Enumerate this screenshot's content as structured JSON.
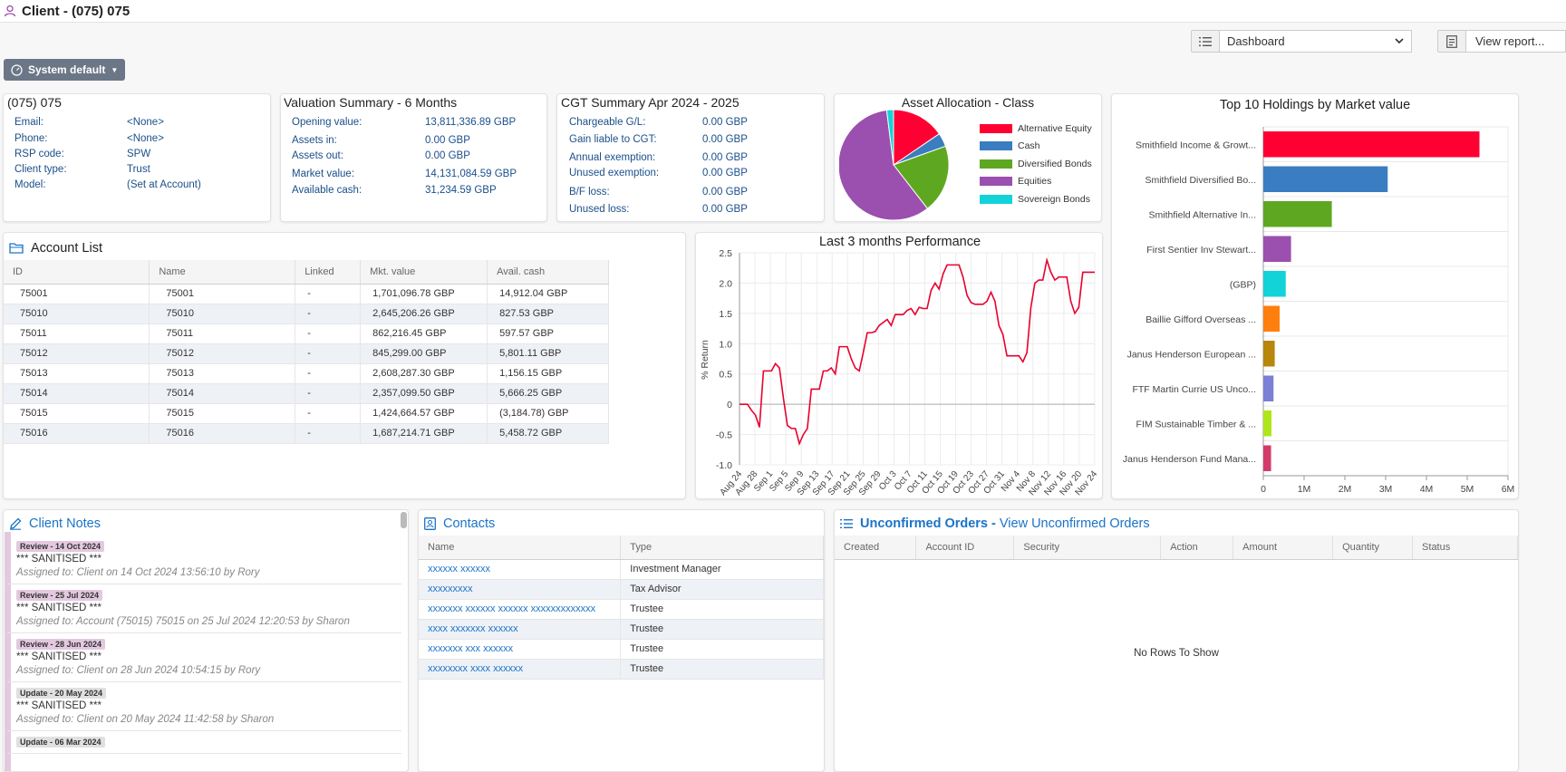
{
  "header": {
    "title": "Client - (075) 075"
  },
  "toolbar": {
    "dashboard_select": "Dashboard",
    "view_report": "View report..."
  },
  "system_default": "System default",
  "client_info": {
    "title": "(075) 075",
    "fields": [
      {
        "label": "Email:",
        "value": "<None>"
      },
      {
        "label": "Phone:",
        "value": "<None>"
      },
      {
        "label": "RSP code:",
        "value": "SPW"
      },
      {
        "label": "Client type:",
        "value": "Trust"
      },
      {
        "label": "Model:",
        "value": "(Set at Account)"
      }
    ]
  },
  "valuation": {
    "title": "Valuation Summary - 6 Months",
    "fields": [
      {
        "label": "Opening value:",
        "value": "13,811,336.89 GBP"
      },
      {
        "label": "Assets in:",
        "value": "0.00 GBP"
      },
      {
        "label": "Assets out:",
        "value": "0.00 GBP"
      },
      {
        "label": "Market value:",
        "value": "14,131,084.59 GBP"
      },
      {
        "label": "Available cash:",
        "value": "31,234.59 GBP"
      }
    ]
  },
  "cgt": {
    "title": "CGT Summary Apr 2024 - 2025",
    "fields": [
      {
        "label": "Chargeable G/L:",
        "value": "0.00 GBP"
      },
      {
        "label": "Gain liable to CGT:",
        "value": "0.00 GBP"
      },
      {
        "label": "Annual exemption:",
        "value": "0.00 GBP"
      },
      {
        "label": "Unused exemption:",
        "value": "0.00 GBP"
      },
      {
        "label": "B/F loss:",
        "value": "0.00 GBP"
      },
      {
        "label": "Unused loss:",
        "value": "0.00 GBP"
      }
    ]
  },
  "asset_allocation": {
    "title": "Asset Allocation - Class",
    "legend": [
      {
        "name": "Alternative Equity",
        "color": "#ff0033"
      },
      {
        "name": "Cash",
        "color": "#3a7dc0"
      },
      {
        "name": "Diversified Bonds",
        "color": "#5ea821"
      },
      {
        "name": "Equities",
        "color": "#9b4fae"
      },
      {
        "name": "Sovereign Bonds",
        "color": "#12d3d8"
      }
    ],
    "slices": [
      15.5,
      4,
      20,
      58.5,
      2
    ]
  },
  "top10": {
    "title": "Top 10 Holdings by Market value",
    "labels": [
      "Smithfield Income & Growt...",
      "Smithfield Diversified Bo...",
      "Smithfield Alternative In...",
      "First Sentier Inv Stewart...",
      "(GBP)",
      "Baillie Gifford Overseas ...",
      "Janus Henderson European ...",
      "FTF Martin Currie US Unco...",
      "FIM Sustainable Timber & ...",
      "Janus Henderson Fund Mana..."
    ],
    "values": [
      5.3,
      3.05,
      1.68,
      0.68,
      0.55,
      0.4,
      0.28,
      0.25,
      0.2,
      0.19
    ],
    "colors": [
      "#ff0033",
      "#3a7dc0",
      "#5ea821",
      "#9b4fae",
      "#12d3d8",
      "#ff7f0e",
      "#b8860b",
      "#7b7fd6",
      "#aee61a",
      "#d33a6b"
    ],
    "ticks": [
      "0",
      "1M",
      "2M",
      "3M",
      "4M",
      "5M",
      "6M"
    ]
  },
  "accounts": {
    "title": "Account List",
    "columns": [
      "ID",
      "Name",
      "Linked",
      "Mkt. value",
      "Avail. cash"
    ],
    "rows": [
      [
        "75001",
        "75001",
        "-",
        "1,701,096.78 GBP",
        "14,912.04 GBP"
      ],
      [
        "75010",
        "75010",
        "-",
        "2,645,206.26 GBP",
        "827.53 GBP"
      ],
      [
        "75011",
        "75011",
        "-",
        "862,216.45 GBP",
        "597.57 GBP"
      ],
      [
        "75012",
        "75012",
        "-",
        "845,299.00 GBP",
        "5,801.11 GBP"
      ],
      [
        "75013",
        "75013",
        "-",
        "2,608,287.30 GBP",
        "1,156.15 GBP"
      ],
      [
        "75014",
        "75014",
        "-",
        "2,357,099.50 GBP",
        "5,666.25 GBP"
      ],
      [
        "75015",
        "75015",
        "-",
        "1,424,664.57 GBP",
        "(3,184.78) GBP"
      ],
      [
        "75016",
        "75016",
        "-",
        "1,687,214.71 GBP",
        "5,458.72 GBP"
      ]
    ]
  },
  "chart_data": {
    "type": "line",
    "title": "Last 3 months Performance",
    "ylabel": "% Return",
    "ylim": [
      -1.0,
      2.5
    ],
    "yticks": [
      "2.5",
      "2.0",
      "1.5",
      "1.0",
      "0.5",
      "0",
      "-0.5",
      "-1.0"
    ],
    "xticks": [
      "Aug 24",
      "Aug 28",
      "Sep 1",
      "Sep 5",
      "Sep 9",
      "Sep 13",
      "Sep 17",
      "Sep 21",
      "Sep 25",
      "Sep 29",
      "Oct 3",
      "Oct 7",
      "Oct 11",
      "Oct 15",
      "Oct 19",
      "Oct 23",
      "Oct 27",
      "Oct 31",
      "Nov 4",
      "Nov 8",
      "Nov 12",
      "Nov 16",
      "Nov 20",
      "Nov 24"
    ],
    "values": [
      0,
      0,
      0,
      -0.1,
      -0.18,
      -0.38,
      0.55,
      0.55,
      0.55,
      0.67,
      0.6,
      0.1,
      -0.35,
      -0.4,
      -0.4,
      -0.65,
      -0.5,
      -0.4,
      0.25,
      0.25,
      0.25,
      0.55,
      0.55,
      0.6,
      0.5,
      0.95,
      0.95,
      0.95,
      0.75,
      0.6,
      0.55,
      0.85,
      1.18,
      1.18,
      1.2,
      1.3,
      1.35,
      1.4,
      1.3,
      1.48,
      1.48,
      1.48,
      1.55,
      1.58,
      1.48,
      1.6,
      1.58,
      1.58,
      1.88,
      2.0,
      1.9,
      2.15,
      2.3,
      2.3,
      2.3,
      2.3,
      2.1,
      1.8,
      1.68,
      1.65,
      1.65,
      1.65,
      1.7,
      1.85,
      1.7,
      1.3,
      1.15,
      0.8,
      0.8,
      0.8,
      0.8,
      0.7,
      0.85,
      1.6,
      2.0,
      2.05,
      2.05,
      2.38,
      2.18,
      2.05,
      2.1,
      2.1,
      2.1,
      1.7,
      1.5,
      1.6,
      2.18,
      2.18,
      2.18,
      2.18
    ]
  },
  "client_notes": {
    "title": "Client Notes",
    "items": [
      {
        "badge": "Review - 14 Oct 2024",
        "type": "review",
        "text": "*** SANITISED ***",
        "assign": "Assigned to: Client on 14 Oct 2024 13:56:10 by Rory"
      },
      {
        "badge": "Review - 25 Jul 2024",
        "type": "review",
        "text": "*** SANITISED ***",
        "assign": "Assigned to: Account (75015) 75015 on 25 Jul 2024 12:20:53 by Sharon"
      },
      {
        "badge": "Review - 28 Jun 2024",
        "type": "review",
        "text": "*** SANITISED ***",
        "assign": "Assigned to: Client on 28 Jun 2024 10:54:15 by Rory"
      },
      {
        "badge": "Update - 20 May 2024",
        "type": "update",
        "text": "*** SANITISED ***",
        "assign": "Assigned to: Client on 20 May 2024 11:42:58 by Sharon"
      },
      {
        "badge": "Update - 06 Mar 2024",
        "type": "update",
        "text": "",
        "assign": ""
      }
    ]
  },
  "contacts": {
    "title": "Contacts",
    "columns": [
      "Name",
      "Type"
    ],
    "rows": [
      [
        "xxxxxx xxxxxx",
        "Investment Manager"
      ],
      [
        "xxxxxxxxx",
        "Tax Advisor"
      ],
      [
        "xxxxxxx xxxxxx xxxxxx xxxxxxxxxxxxx",
        "Trustee"
      ],
      [
        "xxxx xxxxxxx xxxxxx",
        "Trustee"
      ],
      [
        "xxxxxxx xxx xxxxxx",
        "Trustee"
      ],
      [
        "xxxxxxxx xxxx xxxxxx",
        "Trustee"
      ]
    ]
  },
  "orders": {
    "title": "Unconfirmed Orders - ",
    "link": "View Unconfirmed Orders",
    "columns": [
      "Created",
      "Account ID",
      "Security",
      "Action",
      "Amount",
      "Quantity",
      "Status"
    ],
    "empty": "No Rows To Show"
  }
}
